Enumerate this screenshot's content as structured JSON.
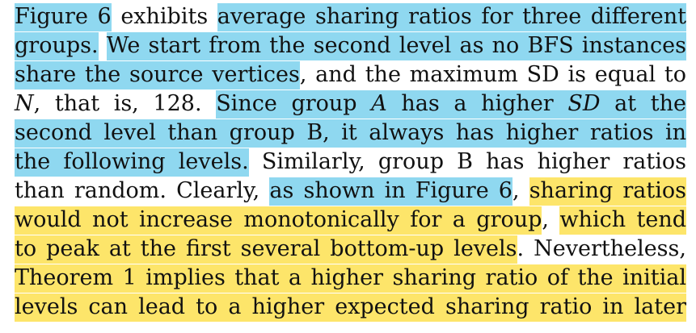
{
  "colors": {
    "highlight_blue": "#8fd8f0",
    "highlight_yellow": "#fde56a",
    "text": "#111111"
  },
  "paragraph": {
    "lines": [
      [
        {
          "text": "Figure 6",
          "hl": "blue"
        },
        {
          "text": " exhibits ",
          "hl": ""
        },
        {
          "text": "average sharing ratios for three different",
          "hl": "blue"
        }
      ],
      [
        {
          "text": "groups.",
          "hl": "blue"
        },
        {
          "text": " ",
          "hl": ""
        },
        {
          "text": "We start from the second level as no BFS instances",
          "hl": "blue"
        }
      ],
      [
        {
          "text": "share the source vertices",
          "hl": "blue"
        },
        {
          "text": ", and the maximum SD is equal to",
          "hl": ""
        }
      ],
      [
        {
          "text": "N",
          "hl": "",
          "italic": true
        },
        {
          "text": ", that is, 128. ",
          "hl": ""
        },
        {
          "text": "Since group ",
          "hl": "blue"
        },
        {
          "text": "A",
          "hl": "blue",
          "italic": true
        },
        {
          "text": " has a higher ",
          "hl": "blue"
        },
        {
          "text": "SD",
          "hl": "blue",
          "italic": true
        },
        {
          "text": " at the",
          "hl": "blue"
        }
      ],
      [
        {
          "text": "second level than group B, it always has higher ratios in",
          "hl": "blue"
        }
      ],
      [
        {
          "text": "the following levels.",
          "hl": "blue"
        },
        {
          "text": " Similarly, group B has higher ratios",
          "hl": ""
        }
      ],
      [
        {
          "text": "than random. Clearly, ",
          "hl": ""
        },
        {
          "text": "as shown in Figure 6",
          "hl": "blue"
        },
        {
          "text": ", ",
          "hl": ""
        },
        {
          "text": "sharing ratios",
          "hl": "yellow"
        }
      ],
      [
        {
          "text": "would not increase monotonically for a group",
          "hl": "yellow"
        },
        {
          "text": ", ",
          "hl": ""
        },
        {
          "text": "which tend",
          "hl": "yellow"
        }
      ],
      [
        {
          "text": "to peak at the first several bottom-up levels",
          "hl": "yellow"
        },
        {
          "text": ". Nevertheless,",
          "hl": ""
        }
      ],
      [
        {
          "text": "Theorem 1 implies that a higher sharing ratio of the initial",
          "hl": "yellow"
        }
      ],
      [
        {
          "text": "levels can lead to a higher expected sharing ratio in later",
          "hl": "yellow"
        }
      ]
    ]
  }
}
